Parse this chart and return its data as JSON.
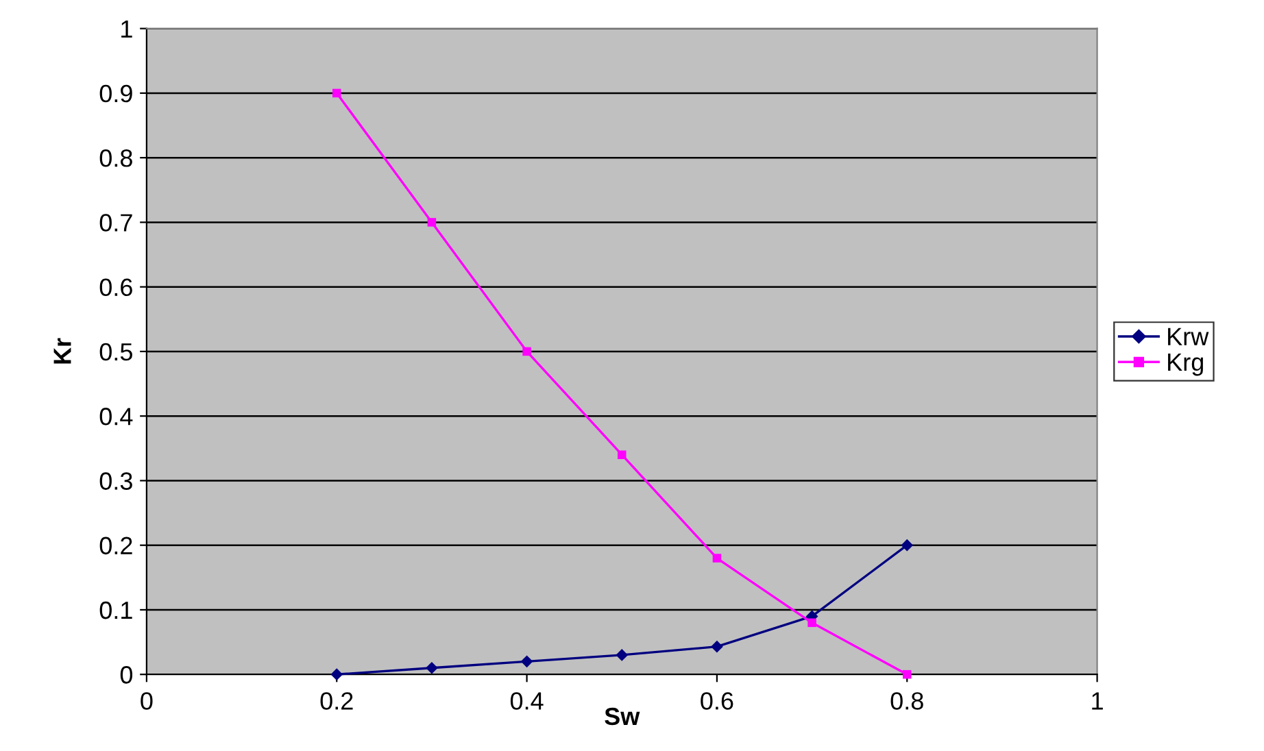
{
  "chart_data": {
    "type": "line",
    "xlabel": "Sw",
    "ylabel": "Kr",
    "x": [
      0.2,
      0.3,
      0.4,
      0.5,
      0.6,
      0.7,
      0.8
    ],
    "series": [
      {
        "name": "Krw",
        "color": "#000080",
        "marker": "diamond",
        "values": [
          0,
          0.01,
          0.02,
          0.03,
          0.043,
          0.09,
          0.2
        ]
      },
      {
        "name": "Krg",
        "color": "#ff00ff",
        "marker": "square",
        "values": [
          0.9,
          0.7,
          0.5,
          0.34,
          0.18,
          0.08,
          0
        ]
      }
    ],
    "xlim": [
      0,
      1
    ],
    "xticks": [
      0,
      0.2,
      0.4,
      0.6,
      0.8,
      1
    ],
    "ylim": [
      0,
      1
    ],
    "yticks": [
      0,
      0.1,
      0.2,
      0.3,
      0.4,
      0.5,
      0.6,
      0.7,
      0.8,
      0.9,
      1
    ],
    "grid": "y",
    "legend": "right",
    "line_style": "solid"
  }
}
